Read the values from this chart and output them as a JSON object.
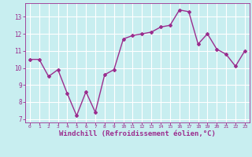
{
  "x": [
    0,
    1,
    2,
    3,
    4,
    5,
    6,
    7,
    8,
    9,
    10,
    11,
    12,
    13,
    14,
    15,
    16,
    17,
    18,
    19,
    20,
    21,
    22,
    23
  ],
  "y": [
    10.5,
    10.5,
    9.5,
    9.9,
    8.5,
    7.2,
    8.6,
    7.4,
    9.6,
    9.9,
    11.7,
    11.9,
    12.0,
    12.1,
    12.4,
    12.5,
    13.4,
    13.3,
    11.4,
    12.0,
    11.1,
    10.8,
    10.1,
    11.0
  ],
  "line_color": "#9B2D8E",
  "marker": "D",
  "markersize": 2.0,
  "linewidth": 1.0,
  "xlabel": "Windchill (Refroidissement éolien,°C)",
  "xlabel_fontsize": 6.5,
  "xlabel_color": "#9B2D8E",
  "bg_color": "#C8EEF0",
  "grid_color": "#ffffff",
  "tick_color": "#9B2D8E",
  "ylim": [
    6.8,
    13.8
  ],
  "yticks": [
    7,
    8,
    9,
    10,
    11,
    12,
    13
  ],
  "xlim": [
    -0.5,
    23.5
  ],
  "xticks": [
    0,
    1,
    2,
    3,
    4,
    5,
    6,
    7,
    8,
    9,
    10,
    11,
    12,
    13,
    14,
    15,
    16,
    17,
    18,
    19,
    20,
    21,
    22,
    23
  ]
}
